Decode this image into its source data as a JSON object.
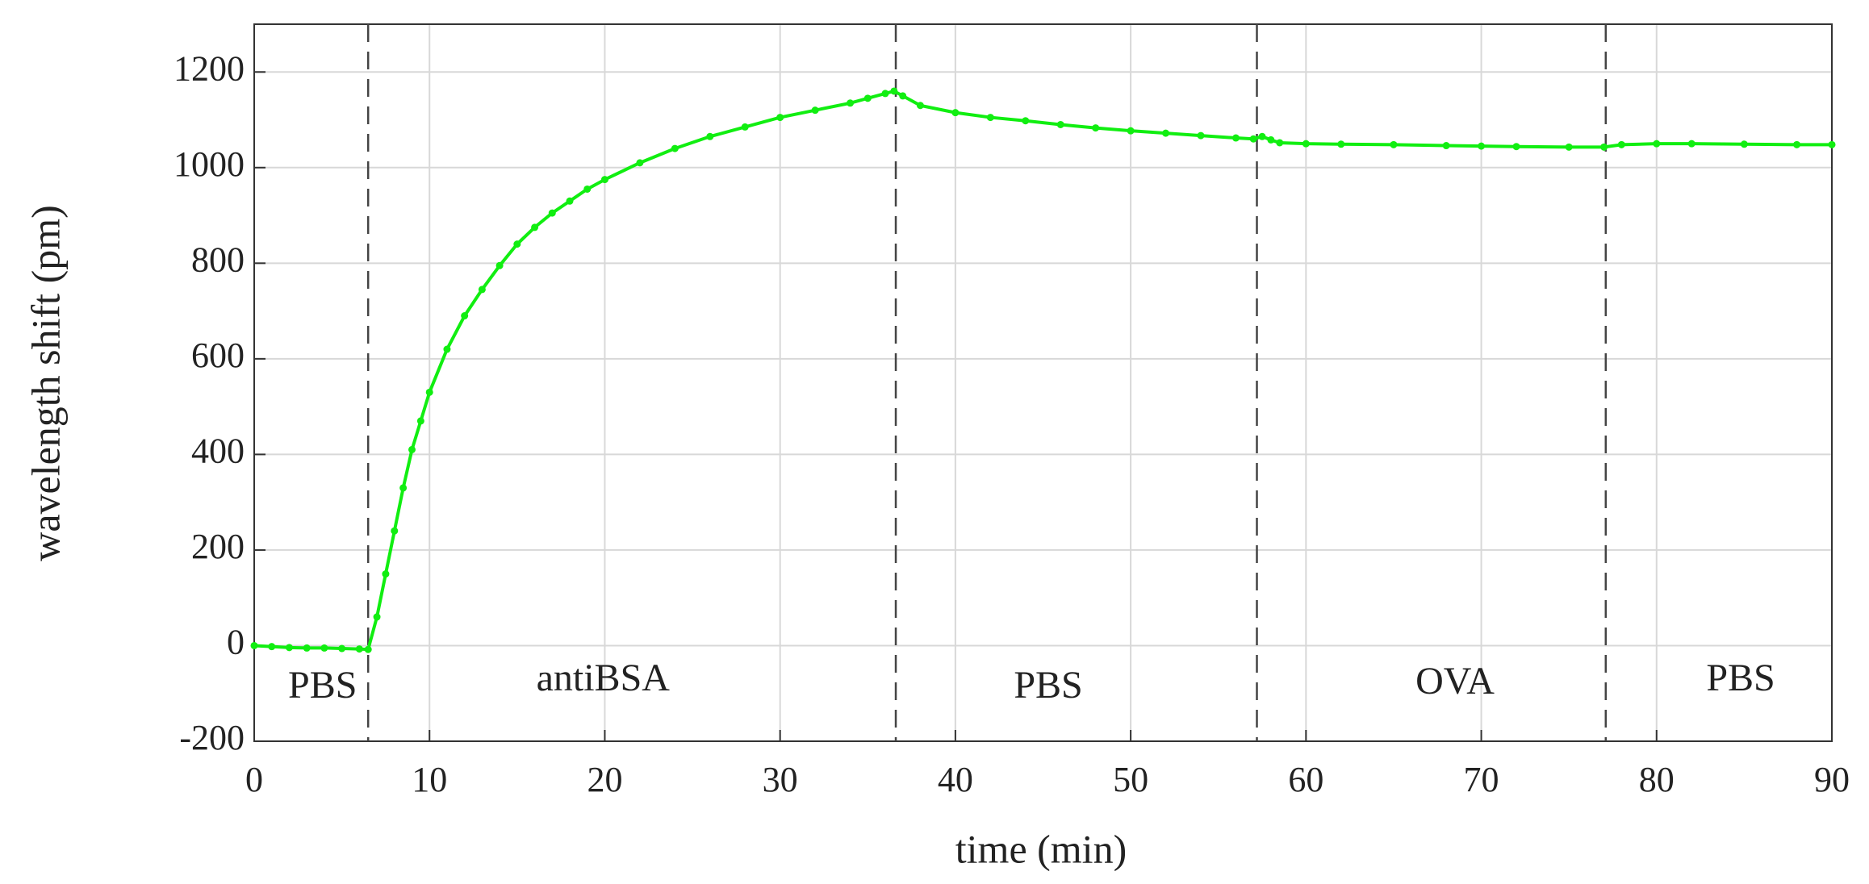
{
  "chart_data": {
    "type": "line",
    "xlabel": "time (min)",
    "ylabel": "wavelength shift (pm)",
    "x": [
      0,
      1,
      2,
      3,
      4,
      5,
      6,
      6.5,
      7,
      7.5,
      8,
      8.5,
      9,
      9.5,
      10,
      11,
      12,
      13,
      14,
      15,
      16,
      17,
      18,
      19,
      20,
      22,
      24,
      26,
      28,
      30,
      32,
      34,
      35,
      36,
      36.5,
      37,
      38,
      40,
      42,
      44,
      46,
      48,
      50,
      52,
      54,
      56,
      57,
      57.5,
      58,
      58.5,
      60,
      62,
      65,
      68,
      70,
      72,
      75,
      77,
      78,
      80,
      82,
      85,
      88,
      90
    ],
    "values": [
      0,
      -2,
      -4,
      -5,
      -5,
      -6,
      -7,
      -8,
      60,
      150,
      240,
      330,
      410,
      470,
      530,
      620,
      690,
      745,
      795,
      840,
      875,
      905,
      930,
      955,
      975,
      1010,
      1040,
      1065,
      1085,
      1105,
      1120,
      1135,
      1145,
      1155,
      1160,
      1150,
      1130,
      1115,
      1105,
      1098,
      1090,
      1083,
      1077,
      1072,
      1067,
      1062,
      1060,
      1065,
      1058,
      1052,
      1050,
      1049,
      1048,
      1046,
      1045,
      1044,
      1043,
      1043,
      1048,
      1050,
      1050,
      1049,
      1048,
      1048
    ],
    "color": "#11ee11",
    "xlim": [
      0,
      90
    ],
    "xticks": [
      0,
      10,
      20,
      30,
      40,
      50,
      60,
      70,
      80,
      90
    ],
    "ylim": [
      -200,
      1300
    ],
    "yticks": [
      -200,
      0,
      200,
      400,
      600,
      800,
      1000,
      1200
    ],
    "grid": true,
    "vlines": [
      6.5,
      36.6,
      57.2,
      77.1
    ],
    "annotations": [
      {
        "text": "PBS",
        "x": 3.9,
        "y": -90
      },
      {
        "text": "antiBSA",
        "x": 19.9,
        "y": -75
      },
      {
        "text": "PBS",
        "x": 45.3,
        "y": -90
      },
      {
        "text": "OVA",
        "x": 68.5,
        "y": -82
      },
      {
        "text": "PBS",
        "x": 84.8,
        "y": -75
      }
    ]
  }
}
